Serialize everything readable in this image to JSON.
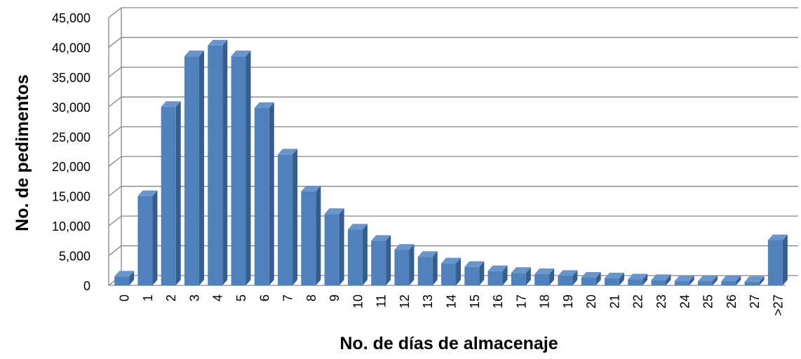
{
  "chart_data": {
    "type": "bar",
    "style": "3d-column",
    "title": "",
    "xlabel": "No. de días de almacenaje",
    "ylabel": "No. de pedimentos",
    "categories": [
      "0",
      "1",
      "2",
      "3",
      "4",
      "5",
      "6",
      "7",
      "8",
      "9",
      "10",
      "11",
      "12",
      "13",
      "14",
      "15",
      "16",
      "17",
      "18",
      "19",
      "20",
      "21",
      "22",
      "23",
      "24",
      "25",
      "26",
      "27",
      ">27"
    ],
    "values": [
      1500,
      15000,
      30000,
      38500,
      40300,
      38500,
      29800,
      22000,
      15800,
      12000,
      9400,
      7500,
      6000,
      4800,
      3700,
      3100,
      2400,
      2100,
      1900,
      1600,
      1300,
      1200,
      1000,
      900,
      700,
      700,
      700,
      600,
      7600
    ],
    "ylim": [
      0,
      45000
    ],
    "yticks": [
      "0",
      "5,000",
      "10,000",
      "15,000",
      "20,000",
      "25,000",
      "30,000",
      "35,000",
      "40,000",
      "45,000"
    ],
    "grid": true,
    "legend": "none",
    "colors": {
      "bar_front": "#4F81BD",
      "bar_side": "#385D8A",
      "bar_top": "#6A95CC",
      "grid": "#868686",
      "wall": "#ffffff"
    }
  }
}
